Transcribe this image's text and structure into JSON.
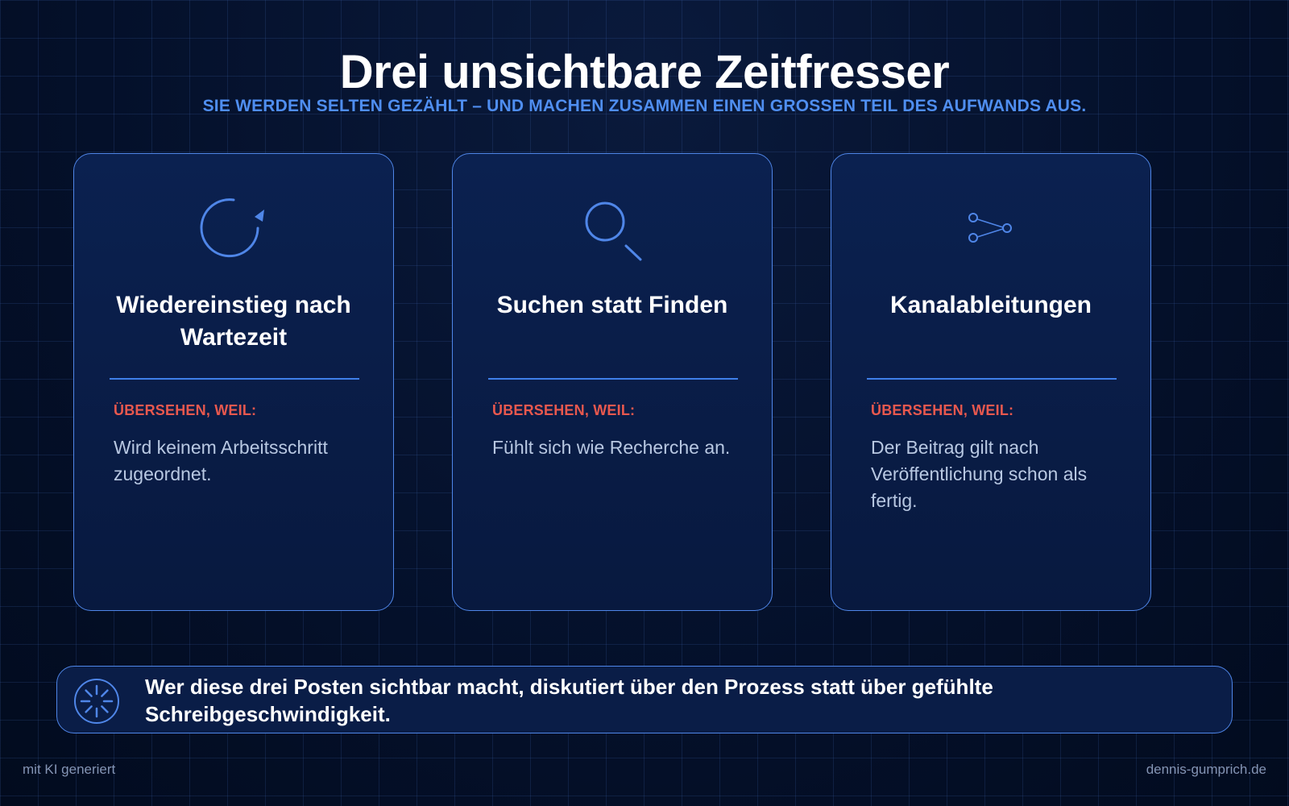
{
  "title": "Drei unsichtbare Zeitfresser",
  "subtitle": "SIE WERDEN SELTEN GEZÄHLT – UND MACHEN ZUSAMMEN EINEN GROSSEN TEIL DES AUFWANDS AUS.",
  "cards": [
    {
      "icon": "refresh-icon",
      "title": "Wiedereinstieg nach Wartezeit",
      "reason_label": "ÜBERSEHEN, WEIL:",
      "reason_text": "Wird keinem Arbeitsschritt zugeordnet."
    },
    {
      "icon": "magnifier-icon",
      "title": "Suchen statt Finden",
      "reason_label": "ÜBERSEHEN, WEIL:",
      "reason_text": "Fühlt sich wie Recherche an."
    },
    {
      "icon": "share-icon",
      "title": "Kanalableitungen",
      "reason_label": "ÜBERSEHEN, WEIL:",
      "reason_text": "Der Beitrag gilt nach Veröffentlichung schon als fertig."
    }
  ],
  "callout": {
    "icon": "loading-spinner-icon",
    "text": "Wer diese drei Posten sichtbar macht, diskutiert über den Prozess statt über gefühlte Schreibgeschwindigkeit."
  },
  "footer": {
    "left": "mit KI generiert",
    "right": "dennis-gumprich.de"
  },
  "colors": {
    "accent": "#4f86e8",
    "warning": "#e8584e",
    "background": "#071633"
  }
}
